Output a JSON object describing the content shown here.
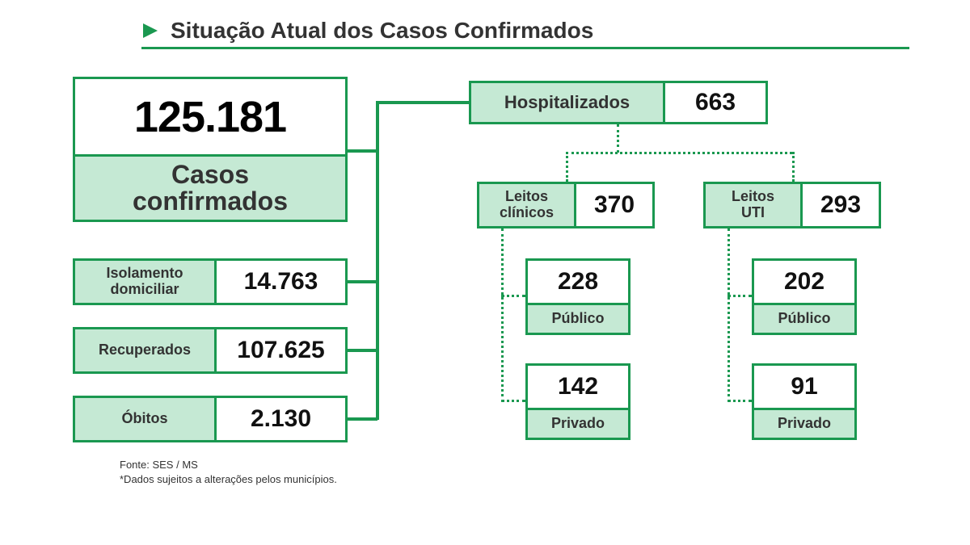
{
  "type": "infographic",
  "title": "Situação Atual dos Casos Confirmados",
  "colors": {
    "accent": "#1a9850",
    "fill": "#c5e9d4",
    "background": "#ffffff",
    "text": "#333333"
  },
  "border_width": 3,
  "main": {
    "value": "125.181",
    "label": "Casos\nconfirmados"
  },
  "stats": {
    "isolamento": {
      "label": "Isolamento\ndomiciliar",
      "value": "14.763"
    },
    "recuperados": {
      "label": "Recuperados",
      "value": "107.625"
    },
    "obitos": {
      "label": "Óbitos",
      "value": "2.130"
    }
  },
  "hospitalizados": {
    "label": "Hospitalizados",
    "value": "663"
  },
  "leitos_clinicos": {
    "label": "Leitos\nclínicos",
    "value": "370",
    "publico": {
      "label": "Público",
      "value": "228"
    },
    "privado": {
      "label": "Privado",
      "value": "142"
    }
  },
  "leitos_uti": {
    "label": "Leitos\nUTI",
    "value": "293",
    "publico": {
      "label": "Público",
      "value": "202"
    },
    "privado": {
      "label": "Privado",
      "value": "91"
    }
  },
  "footnote1": "Fonte: SES / MS",
  "footnote2": "*Dados sujeitos a alterações pelos municípios."
}
